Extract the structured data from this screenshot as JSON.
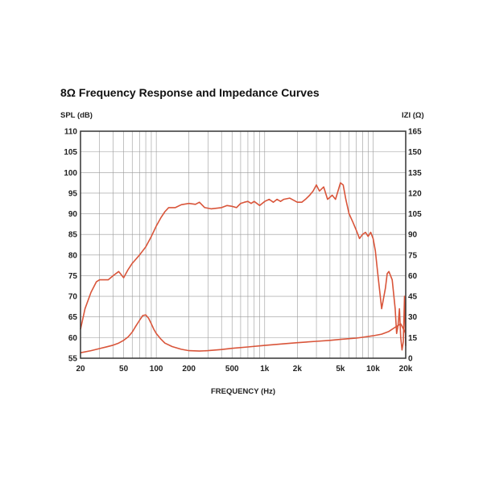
{
  "chart_data": {
    "type": "line",
    "title": "8Ω Frequency Response and Impedance Curves",
    "xlabel": "FREQUENCY (Hz)",
    "ylabel_left": "SPL (dB)",
    "ylabel_right": "IZI (Ω)",
    "x_scale": "log",
    "xlim": [
      20,
      20000
    ],
    "ylim_left": [
      55,
      110
    ],
    "ylim_right": [
      0,
      165
    ],
    "grid": true,
    "colors": {
      "curve": "#d9553a",
      "grid": "#9a9a9a",
      "frame": "#333333"
    },
    "x_ticks": [
      {
        "value": 20,
        "label": "20"
      },
      {
        "value": 50,
        "label": "50"
      },
      {
        "value": 100,
        "label": "100"
      },
      {
        "value": 200,
        "label": "200"
      },
      {
        "value": 500,
        "label": "500"
      },
      {
        "value": 1000,
        "label": "1k"
      },
      {
        "value": 2000,
        "label": "2k"
      },
      {
        "value": 5000,
        "label": "5k"
      },
      {
        "value": 10000,
        "label": "10k"
      },
      {
        "value": 20000,
        "label": "20k"
      }
    ],
    "y_ticks_left": [
      "110",
      "105",
      "100",
      "95",
      "90",
      "85",
      "80",
      "75",
      "70",
      "65",
      "60",
      "55"
    ],
    "y_ticks_right": [
      "165",
      "150",
      "135",
      "120",
      "105",
      "90",
      "75",
      "60",
      "45",
      "30",
      "15",
      "0"
    ],
    "series": [
      {
        "axis": "left",
        "x": [
          20,
          22,
          25,
          28,
          30,
          33,
          36,
          40,
          45,
          50,
          55,
          60,
          65,
          70,
          80,
          90,
          100,
          110,
          120,
          130,
          150,
          170,
          200,
          230,
          250,
          280,
          320,
          400,
          450,
          500,
          550,
          600,
          650,
          700,
          750,
          800,
          900,
          1000,
          1100,
          1200,
          1300,
          1400,
          1500,
          1700,
          2000,
          2200,
          2400,
          2600,
          2800,
          3000,
          3200,
          3500,
          3800,
          4200,
          4500,
          5000,
          5300,
          5600,
          6000,
          6500,
          7000,
          7500,
          8000,
          8500,
          9000,
          9500,
          10000,
          10500,
          11000,
          12000,
          13000,
          13500,
          14000,
          15000,
          16000,
          16500,
          17000,
          17500,
          18000,
          18500,
          19000,
          19500,
          20000
        ],
        "values": [
          62,
          67,
          71,
          73.5,
          74,
          74,
          74,
          75,
          76,
          74.5,
          76.5,
          78,
          79,
          80,
          82,
          84.5,
          87,
          89,
          90.5,
          91.5,
          91.5,
          92.2,
          92.5,
          92.3,
          92.8,
          91.5,
          91.2,
          91.5,
          92,
          91.8,
          91.5,
          92.5,
          92.8,
          93,
          92.5,
          93,
          92,
          93,
          93.5,
          92.8,
          93.5,
          93,
          93.5,
          93.8,
          92.8,
          92.8,
          93.6,
          94.5,
          95.5,
          97,
          95.5,
          96.5,
          93.5,
          94.5,
          93.5,
          97.5,
          97,
          93.5,
          90,
          88,
          86,
          84,
          85,
          85.5,
          84.5,
          85.5,
          84,
          81,
          76,
          67,
          72,
          75.5,
          76,
          74,
          67,
          61,
          63,
          67,
          60,
          57,
          59,
          70,
          58
        ]
      },
      {
        "axis": "right",
        "x": [
          20,
          25,
          30,
          35,
          40,
          45,
          50,
          55,
          60,
          65,
          70,
          75,
          80,
          85,
          90,
          95,
          100,
          110,
          120,
          140,
          170,
          200,
          250,
          300,
          400,
          500,
          700,
          1000,
          1500,
          2000,
          3000,
          4000,
          5000,
          6000,
          7000,
          8000,
          10000,
          12000,
          14000,
          16000,
          18000,
          20000
        ],
        "values": [
          4,
          5.5,
          7,
          8.3,
          9.5,
          11,
          13,
          15.5,
          19,
          23.5,
          27.5,
          31,
          31.5,
          29,
          25,
          21,
          18,
          14,
          11,
          8.5,
          6.5,
          5.5,
          5.2,
          5.5,
          6.3,
          7.2,
          8.2,
          9.3,
          10.5,
          11.3,
          12.3,
          13,
          13.7,
          14.2,
          14.6,
          15.2,
          16.3,
          17.5,
          19.5,
          22.5,
          25,
          18
        ]
      }
    ]
  }
}
